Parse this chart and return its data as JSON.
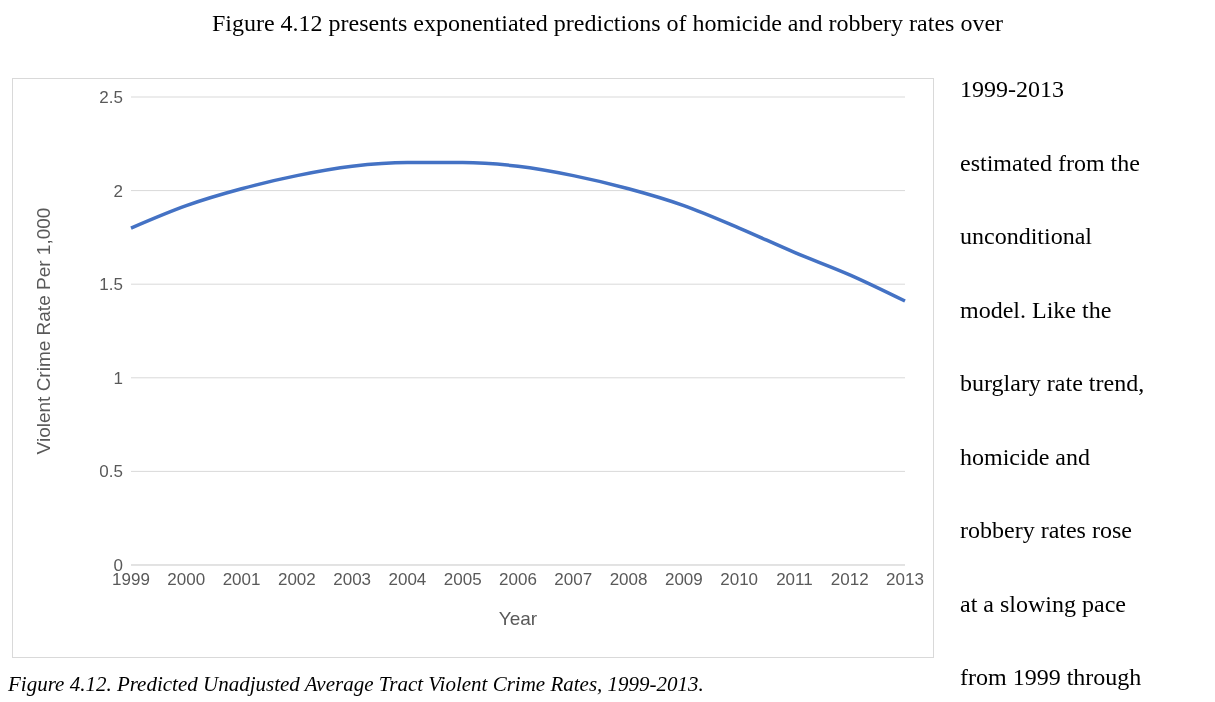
{
  "chart_data": {
    "type": "line",
    "title": "Figure 4.12. Predicted Unadjusted Average Tract Violent Crime Rates, 1999-2013.",
    "xlabel": "Year",
    "ylabel": "Violent Crime Rate Per 1,000",
    "categories": [
      "1999",
      "2000",
      "2001",
      "2002",
      "2003",
      "2004",
      "2005",
      "2006",
      "2007",
      "2008",
      "2009",
      "2010",
      "2011",
      "2012",
      "2013"
    ],
    "series": [
      {
        "color": "#4472c4",
        "values": [
          1.8,
          1.92,
          2.01,
          2.08,
          2.13,
          2.15,
          2.15,
          2.13,
          2.08,
          2.01,
          1.92,
          1.8,
          1.67,
          1.55,
          1.41
        ]
      }
    ],
    "ylim": [
      0,
      2.5
    ],
    "yticks": [
      0,
      0.5,
      1,
      1.5,
      2,
      2.5
    ],
    "grid": "y",
    "legend": false,
    "marker": "none",
    "line_style": "solid",
    "annotations": [
      "Figure 4.12 presents exponentiated predictions of homicide and robbery rates over",
      "1999-2013",
      "estimated from the",
      "unconditional",
      "model. Like the",
      "burglary rate trend,",
      "homicide and",
      "robbery rates rose",
      "at a slowing pace",
      "from 1999 through"
    ]
  }
}
